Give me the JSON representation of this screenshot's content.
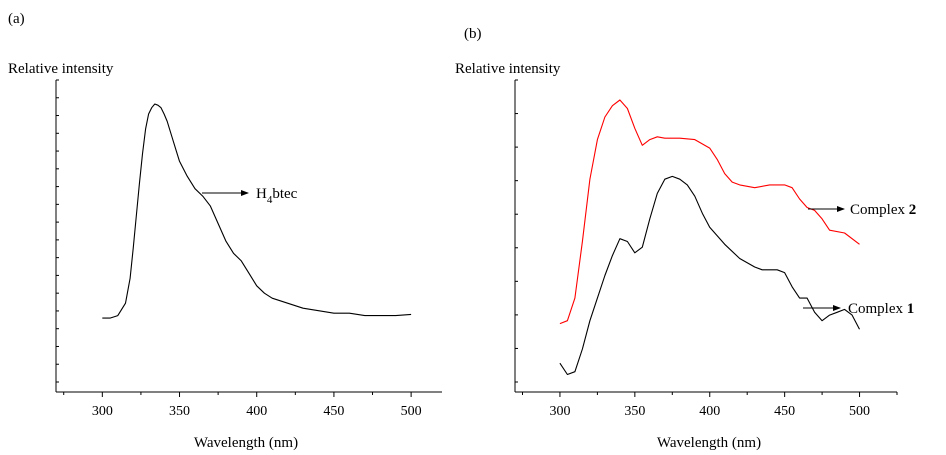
{
  "chart_data": [
    {
      "type": "line",
      "panel_label": "(a)",
      "ylabel": "Relative intensity",
      "xlabel": "Wavelength  (nm)",
      "xlim": [
        270,
        520
      ],
      "ylim": [
        0,
        1
      ],
      "x_ticks": [
        300,
        350,
        400,
        450,
        500
      ],
      "y_tick_labels": false,
      "series": [
        {
          "color": "#000000",
          "x": [
            300,
            305,
            310,
            315,
            318,
            320,
            322,
            324,
            326,
            328,
            330,
            332,
            334,
            336,
            338,
            340,
            342,
            345,
            348,
            350,
            355,
            360,
            365,
            370,
            375,
            380,
            385,
            390,
            395,
            400,
            405,
            410,
            420,
            430,
            440,
            450,
            460,
            470,
            480,
            490,
            500
          ],
          "y": [
            0.14,
            0.14,
            0.15,
            0.2,
            0.3,
            0.42,
            0.55,
            0.68,
            0.8,
            0.9,
            0.96,
            0.985,
            1.0,
            0.995,
            0.985,
            0.96,
            0.93,
            0.87,
            0.81,
            0.77,
            0.71,
            0.66,
            0.63,
            0.59,
            0.52,
            0.45,
            0.4,
            0.37,
            0.32,
            0.27,
            0.24,
            0.22,
            0.2,
            0.18,
            0.17,
            0.16,
            0.16,
            0.15,
            0.15,
            0.15,
            0.155
          ]
        }
      ],
      "annotations": [
        {
          "text_main": "H",
          "text_sub": "4",
          "text_tail": "btec"
        }
      ]
    },
    {
      "type": "line",
      "panel_label": "(b)",
      "ylabel": "Relative intensity",
      "xlabel": "Wavelength  (nm)",
      "xlim": [
        270,
        525
      ],
      "ylim": [
        0,
        1
      ],
      "x_ticks": [
        300,
        350,
        400,
        450,
        500
      ],
      "y_tick_labels": false,
      "series": [
        {
          "name": "Complex 2",
          "color": "#ff0000",
          "x": [
            300,
            305,
            310,
            315,
            320,
            325,
            330,
            335,
            340,
            345,
            350,
            355,
            360,
            365,
            370,
            380,
            390,
            400,
            405,
            410,
            415,
            420,
            430,
            440,
            445,
            450,
            455,
            460,
            465,
            470,
            475,
            480,
            490,
            500
          ],
          "y": [
            0.21,
            0.22,
            0.3,
            0.5,
            0.72,
            0.86,
            0.94,
            0.98,
            1.0,
            0.97,
            0.9,
            0.84,
            0.86,
            0.87,
            0.865,
            0.865,
            0.86,
            0.83,
            0.79,
            0.74,
            0.71,
            0.7,
            0.69,
            0.7,
            0.7,
            0.7,
            0.69,
            0.65,
            0.62,
            0.61,
            0.58,
            0.54,
            0.53,
            0.49
          ]
        },
        {
          "name": "Complex 1",
          "color": "#000000",
          "x": [
            300,
            305,
            310,
            315,
            320,
            325,
            330,
            335,
            340,
            345,
            350,
            355,
            360,
            365,
            370,
            375,
            380,
            385,
            390,
            395,
            400,
            410,
            420,
            430,
            435,
            440,
            445,
            450,
            455,
            460,
            465,
            470,
            475,
            480,
            485,
            490,
            495,
            500
          ],
          "y": [
            0.07,
            0.03,
            0.04,
            0.12,
            0.22,
            0.3,
            0.38,
            0.45,
            0.51,
            0.5,
            0.46,
            0.48,
            0.58,
            0.67,
            0.72,
            0.73,
            0.72,
            0.7,
            0.66,
            0.6,
            0.55,
            0.49,
            0.44,
            0.41,
            0.4,
            0.4,
            0.4,
            0.39,
            0.34,
            0.3,
            0.3,
            0.25,
            0.22,
            0.24,
            0.25,
            0.26,
            0.24,
            0.19
          ]
        }
      ],
      "annotations": [
        {
          "text_main": "Complex ",
          "text_bold": "2"
        },
        {
          "text_main": "Complex ",
          "text_bold": "1"
        }
      ]
    }
  ]
}
